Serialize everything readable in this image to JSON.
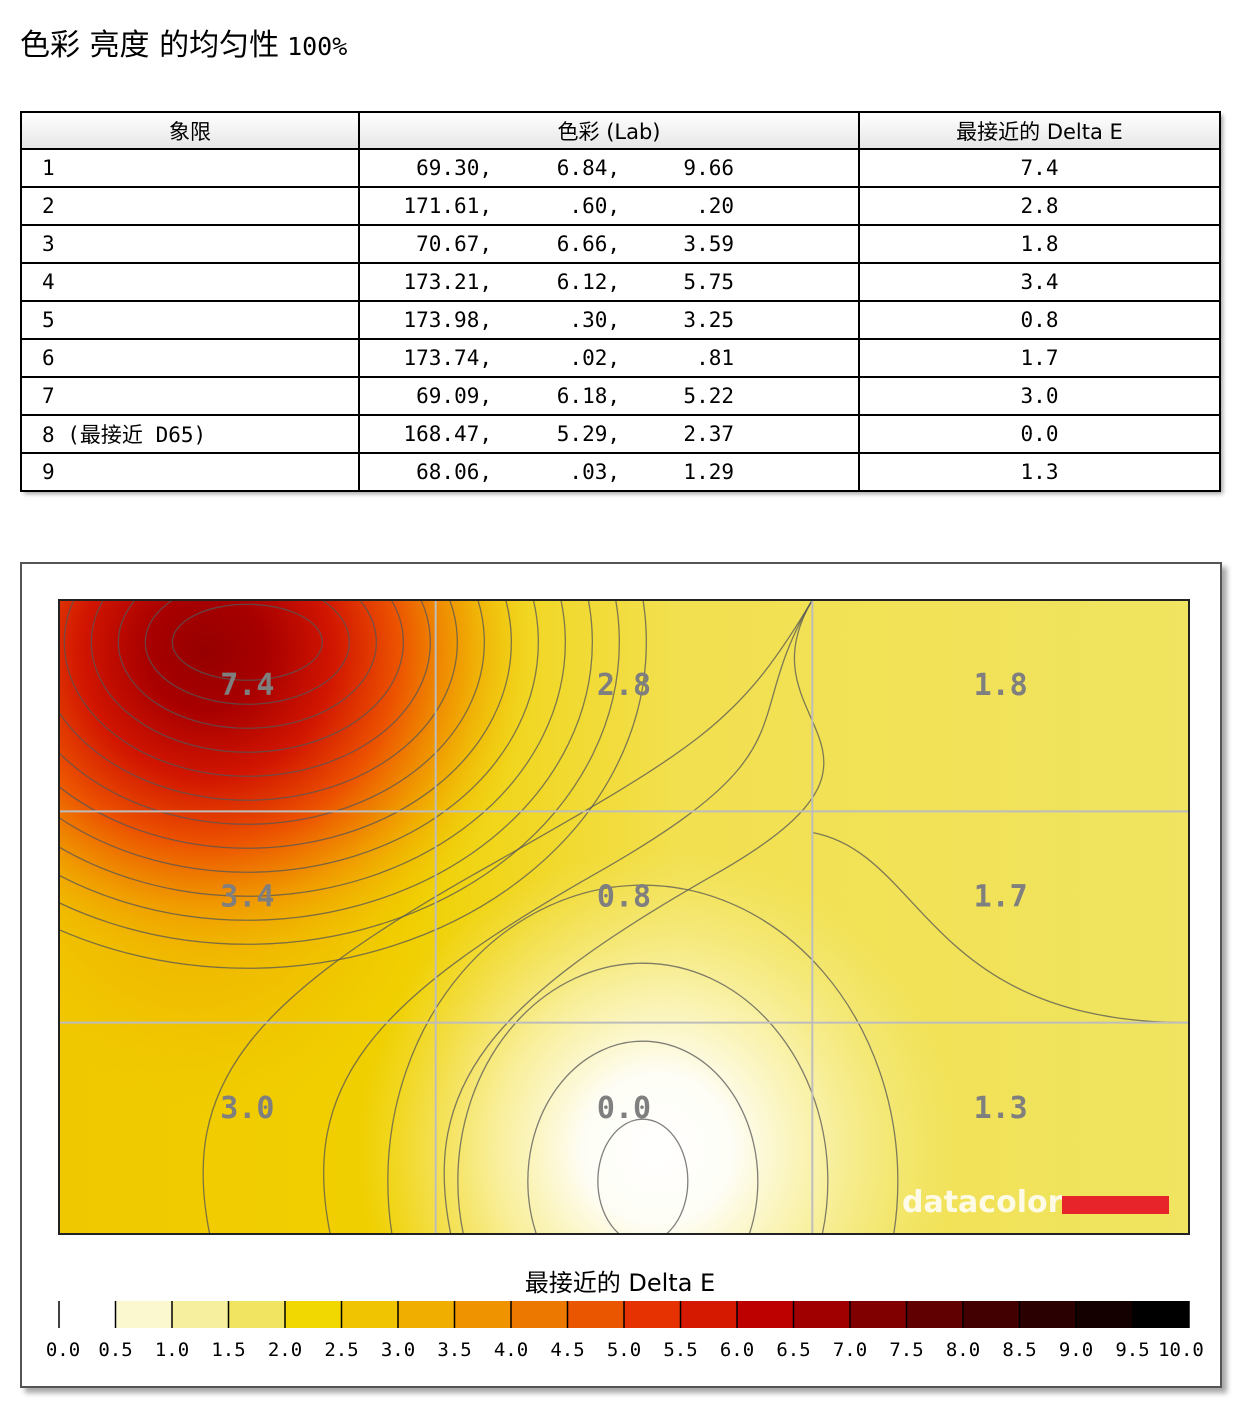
{
  "page": {
    "title": "色彩 亮度 的均匀性",
    "title_suffix": "100%"
  },
  "chart_data": [
    {
      "type": "table",
      "columns": [
        "象限",
        "色彩 (Lab)",
        "最接近的 Delta E"
      ],
      "rows": [
        {
          "quadrant": "1",
          "L": "69.30,",
          "a": "6.84,",
          "b": "9.66",
          "delta_e": "7.4"
        },
        {
          "quadrant": "2",
          "L": "171.61,",
          "a": ".60,",
          "b": ".20",
          "delta_e": "2.8"
        },
        {
          "quadrant": "3",
          "L": "70.67,",
          "a": "6.66,",
          "b": "3.59",
          "delta_e": "1.8"
        },
        {
          "quadrant": "4",
          "L": "173.21,",
          "a": "6.12,",
          "b": "5.75",
          "delta_e": "3.4"
        },
        {
          "quadrant": "5",
          "L": "173.98,",
          "a": ".30,",
          "b": "3.25",
          "delta_e": "0.8"
        },
        {
          "quadrant": "6",
          "L": "173.74,",
          "a": ".02,",
          "b": ".81",
          "delta_e": "1.7"
        },
        {
          "quadrant": "7",
          "L": "69.09,",
          "a": "6.18,",
          "b": "5.22",
          "delta_e": "3.0"
        },
        {
          "quadrant": "8 (最接近 D65)",
          "L": "168.47,",
          "a": "5.29,",
          "b": "2.37",
          "delta_e": "0.0"
        },
        {
          "quadrant": "9",
          "L": "68.06,",
          "a": ".03,",
          "b": "1.29",
          "delta_e": "1.3"
        }
      ]
    },
    {
      "type": "heatmap",
      "grid": {
        "rows": 3,
        "cols": 3
      },
      "values": [
        [
          7.4,
          2.8,
          1.8
        ],
        [
          3.4,
          0.8,
          1.7
        ],
        [
          3.0,
          0.0,
          1.3
        ]
      ],
      "labels": [
        [
          "7.4",
          "2.8",
          "1.8"
        ],
        [
          "3.4",
          "0.8",
          "1.7"
        ],
        [
          "3.0",
          "0.0",
          "1.3"
        ]
      ],
      "contour_lines": true,
      "watermark": "datacolor",
      "colorbar": {
        "title": "最接近的 Delta E",
        "range": [
          0,
          10
        ],
        "step": 0.5,
        "ticks": [
          "0.0",
          "0.5",
          "1.0",
          "1.5",
          "2.0",
          "2.5",
          "3.0",
          "3.5",
          "4.0",
          "4.5",
          "5.0",
          "5.5",
          "6.0",
          "6.5",
          "7.0",
          "7.5",
          "8.0",
          "8.5",
          "9.0",
          "9.5",
          "10.0"
        ],
        "colors": [
          "#ffffff",
          "#fbf8cf",
          "#f5ef9e",
          "#f0e460",
          "#f0d800",
          "#f0c400",
          "#f0ae00",
          "#ef9400",
          "#ed7800",
          "#ea5600",
          "#e53200",
          "#d51800",
          "#bd0000",
          "#a00000",
          "#800000",
          "#600000",
          "#420000",
          "#2a0000",
          "#150000",
          "#000000"
        ]
      }
    }
  ]
}
